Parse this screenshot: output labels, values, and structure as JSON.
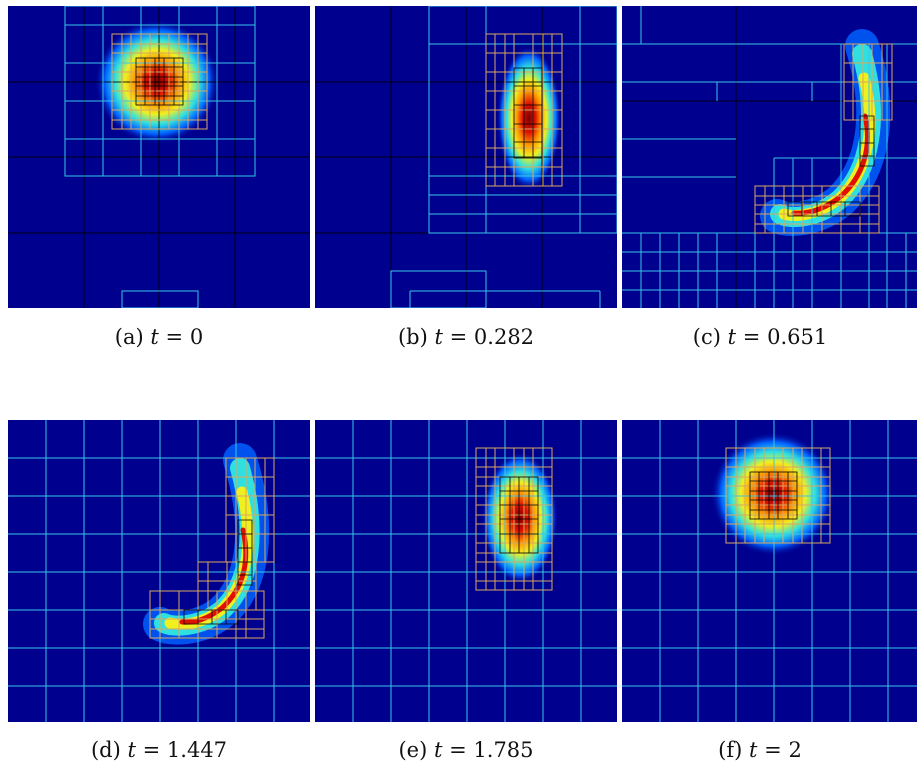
{
  "figure": {
    "panels": [
      {
        "id": "a",
        "label": "(a)",
        "time": "0",
        "caption_var": "t",
        "caption_op": "="
      },
      {
        "id": "b",
        "label": "(b)",
        "time": "0.282",
        "caption_var": "t",
        "caption_op": "="
      },
      {
        "id": "c",
        "label": "(c)",
        "time": "0.651",
        "caption_var": "t",
        "caption_op": "="
      },
      {
        "id": "d",
        "label": "(d)",
        "time": "1.447",
        "caption_var": "t",
        "caption_op": "="
      },
      {
        "id": "e",
        "label": "(e)",
        "time": "1.785",
        "caption_var": "t",
        "caption_op": "="
      },
      {
        "id": "f",
        "label": "(f)",
        "time": "2",
        "caption_var": "t",
        "caption_op": "="
      }
    ]
  },
  "colors": {
    "field_background": "#00008f",
    "grid_level0": "#000000",
    "grid_level1": "#39c6e8",
    "grid_level2": "#d9a860",
    "grid_level3": "#000000"
  }
}
